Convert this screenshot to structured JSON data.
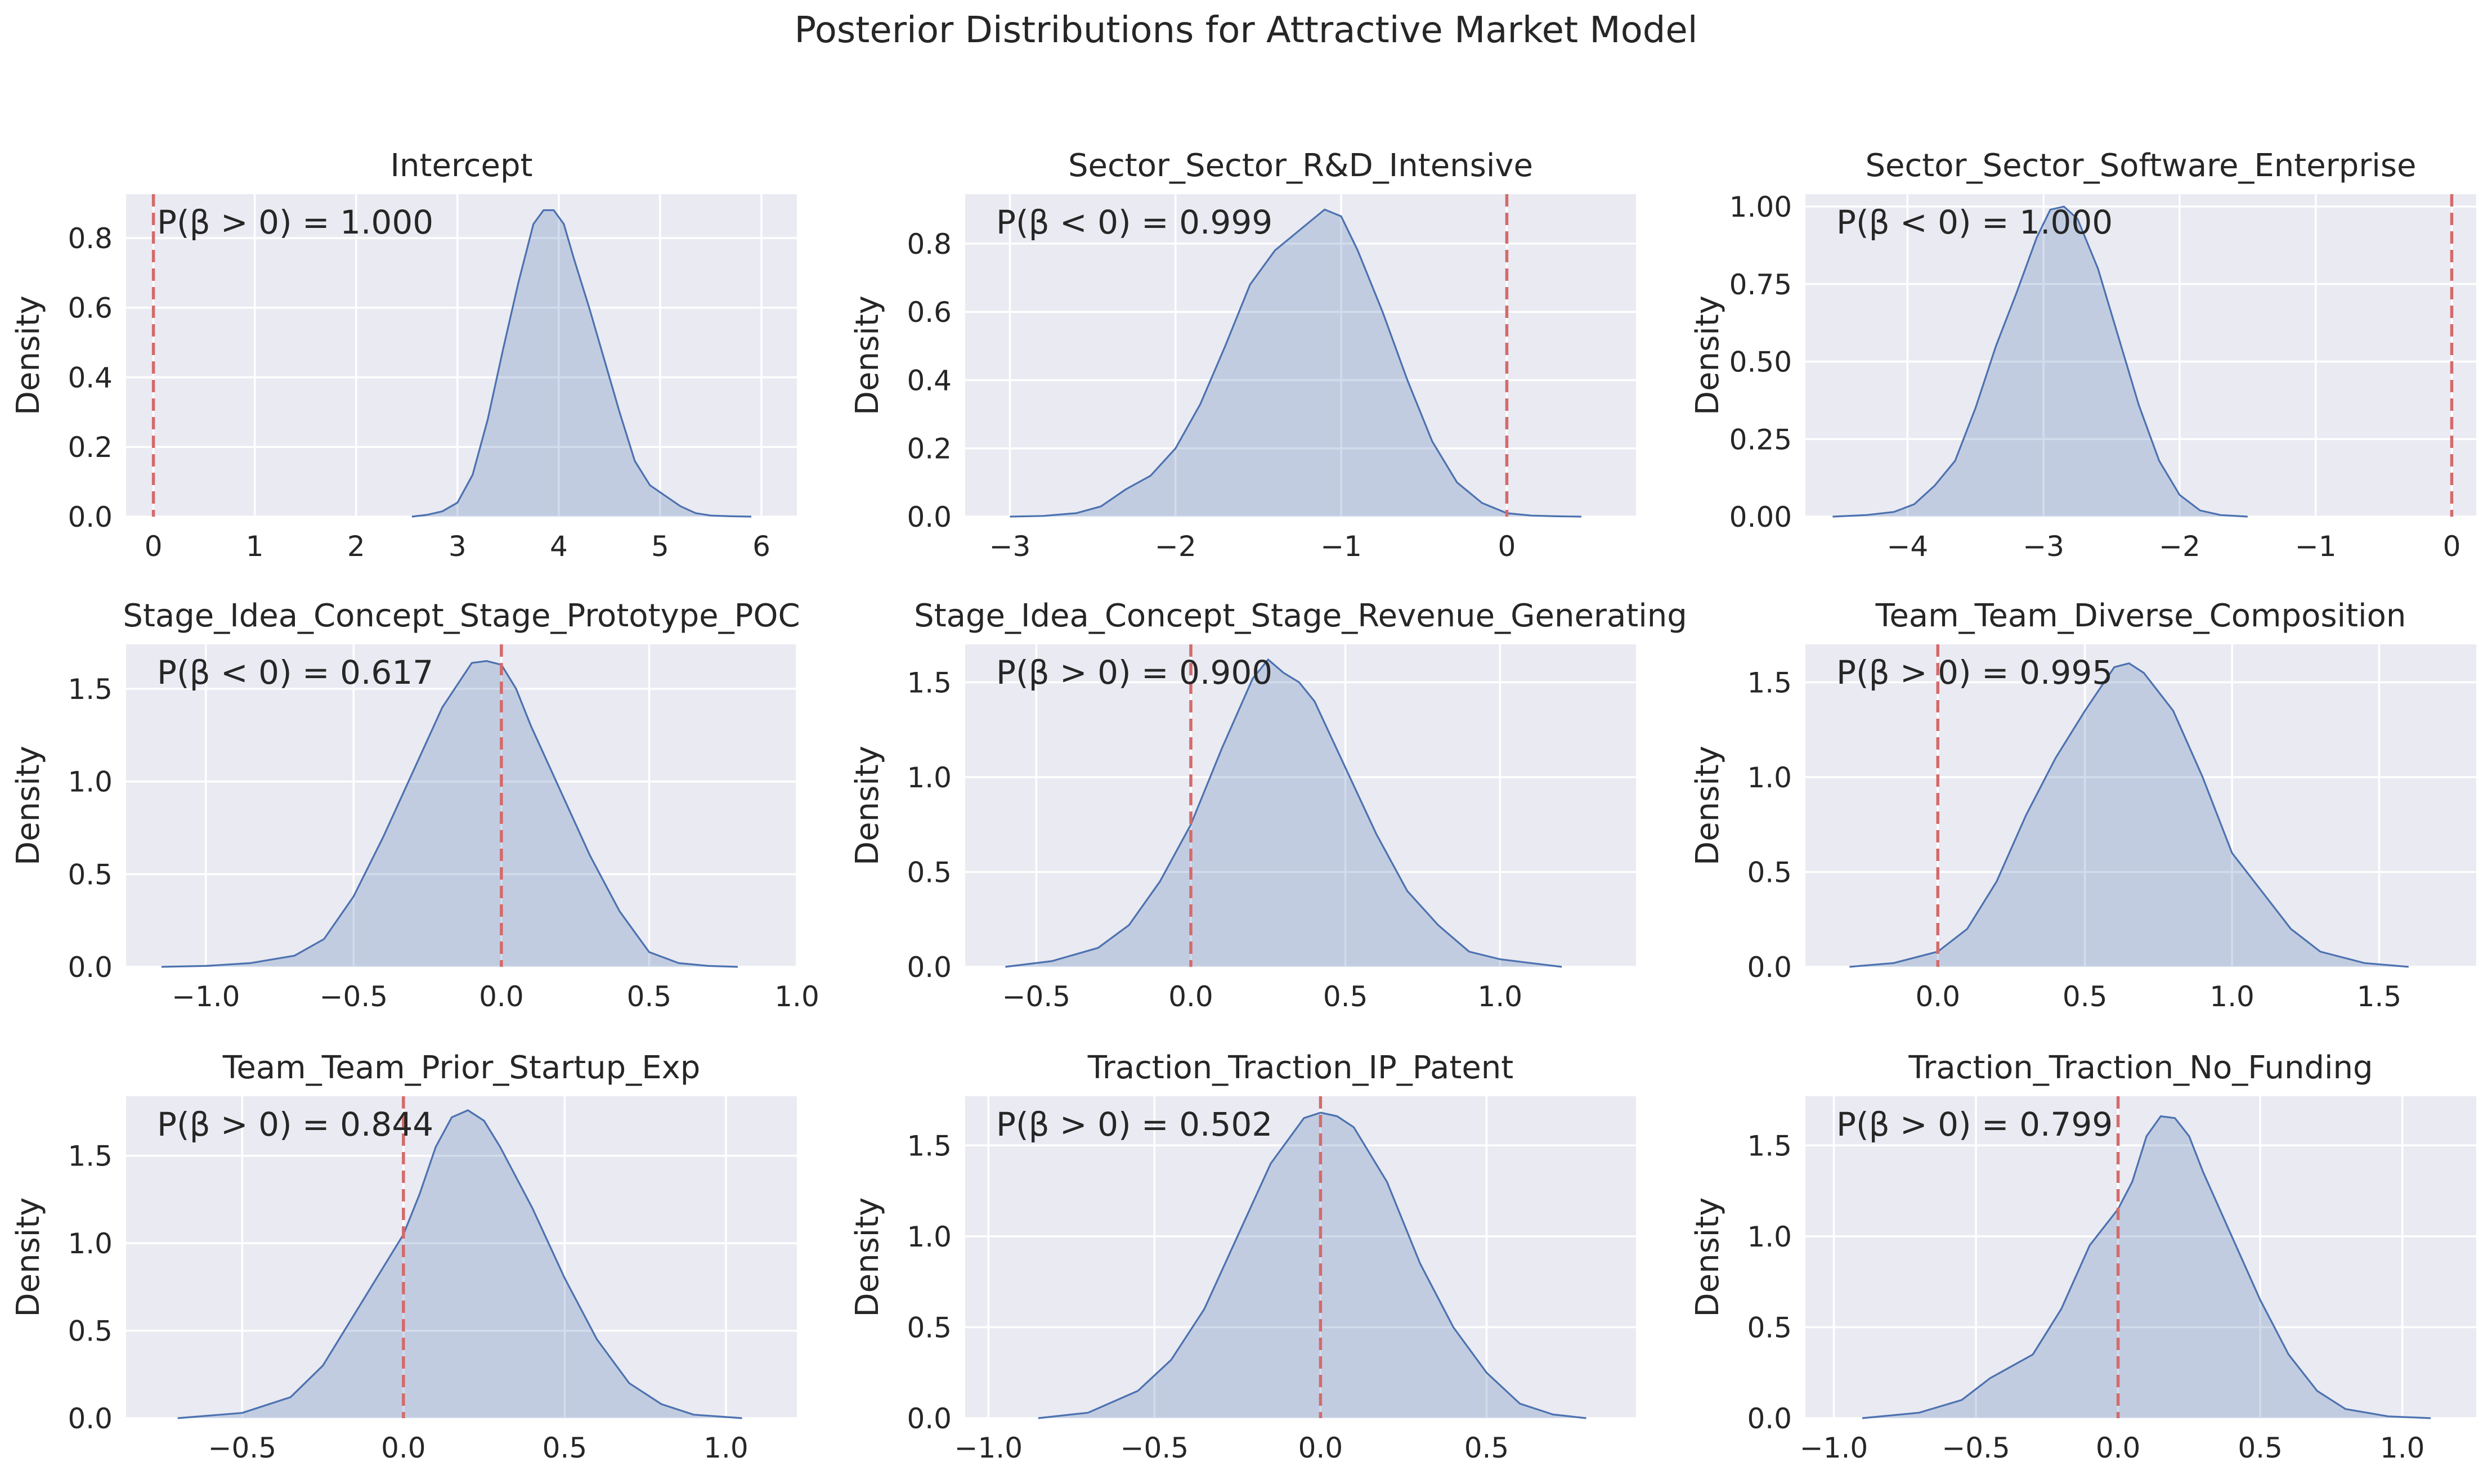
{
  "figure": {
    "title": "Posterior Distributions for Attractive Market Model"
  },
  "style": {
    "axes_bg": "#eaeaf2",
    "grid": "#ffffff",
    "line": "#4c72b0",
    "fill": "#4c72b0",
    "ref_line": "#d46a6a",
    "text": "#262626"
  },
  "chart_data": [
    {
      "type": "area",
      "title": "Intercept",
      "ylabel": "Density",
      "xlim": [
        -0.27,
        6.35
      ],
      "ylim": [
        0,
        0.926
      ],
      "xticks": [
        0,
        1,
        2,
        3,
        4,
        5,
        6
      ],
      "xtick_labels": [
        "0",
        "1",
        "2",
        "3",
        "4",
        "5",
        "6"
      ],
      "yticks": [
        0,
        0.2,
        0.4,
        0.6,
        0.8
      ],
      "ytick_labels": [
        "0.0",
        "0.2",
        "0.4",
        "0.6",
        "0.8"
      ],
      "ref_x": 0,
      "annotation": "P(β > 0) = 1.000",
      "x": [
        2.55,
        2.7,
        2.85,
        3.0,
        3.15,
        3.3,
        3.45,
        3.6,
        3.75,
        3.85,
        3.95,
        4.05,
        4.15,
        4.3,
        4.45,
        4.6,
        4.75,
        4.9,
        5.05,
        5.2,
        5.35,
        5.5,
        5.7,
        5.9
      ],
      "density": [
        0.0,
        0.005,
        0.015,
        0.04,
        0.12,
        0.28,
        0.48,
        0.67,
        0.84,
        0.88,
        0.88,
        0.84,
        0.74,
        0.6,
        0.45,
        0.3,
        0.16,
        0.09,
        0.06,
        0.03,
        0.01,
        0.003,
        0.001,
        0.0
      ]
    },
    {
      "type": "area",
      "title": "Sector_Sector_R&D_Intensive",
      "ylabel": "Density",
      "xlim": [
        -3.27,
        0.78
      ],
      "ylim": [
        0,
        0.945
      ],
      "xticks": [
        -3,
        -2,
        -1,
        0
      ],
      "xtick_labels": [
        "−3",
        "−2",
        "−1",
        "0"
      ],
      "yticks": [
        0,
        0.2,
        0.4,
        0.6,
        0.8
      ],
      "ytick_labels": [
        "0.0",
        "0.2",
        "0.4",
        "0.6",
        "0.8"
      ],
      "ref_x": 0,
      "annotation": "P(β < 0) = 0.999",
      "x": [
        -3.0,
        -2.8,
        -2.6,
        -2.45,
        -2.3,
        -2.15,
        -2.0,
        -1.85,
        -1.7,
        -1.55,
        -1.4,
        -1.25,
        -1.1,
        -1.0,
        -0.9,
        -0.75,
        -0.6,
        -0.45,
        -0.3,
        -0.15,
        0.0,
        0.15,
        0.3,
        0.45
      ],
      "density": [
        0.0,
        0.002,
        0.01,
        0.03,
        0.08,
        0.12,
        0.2,
        0.33,
        0.5,
        0.68,
        0.78,
        0.84,
        0.9,
        0.88,
        0.78,
        0.6,
        0.4,
        0.22,
        0.1,
        0.04,
        0.01,
        0.003,
        0.001,
        0.0
      ]
    },
    {
      "type": "area",
      "title": "Sector_Sector_Software_Enterprise",
      "ylabel": "Density",
      "xlim": [
        -4.75,
        0.18
      ],
      "ylim": [
        0,
        1.04
      ],
      "xticks": [
        -4,
        -3,
        -2,
        -1,
        0
      ],
      "xtick_labels": [
        "−4",
        "−3",
        "−2",
        "−1",
        "0"
      ],
      "yticks": [
        0,
        0.25,
        0.5,
        0.75,
        1.0
      ],
      "ytick_labels": [
        "0.00",
        "0.25",
        "0.50",
        "0.75",
        "1.00"
      ],
      "ref_x": 0,
      "annotation": "P(β < 0) = 1.000",
      "x": [
        -4.55,
        -4.3,
        -4.1,
        -3.95,
        -3.8,
        -3.65,
        -3.5,
        -3.35,
        -3.2,
        -3.05,
        -2.95,
        -2.85,
        -2.75,
        -2.6,
        -2.45,
        -2.3,
        -2.15,
        -2.0,
        -1.85,
        -1.7,
        -1.5
      ],
      "density": [
        0.0,
        0.005,
        0.015,
        0.04,
        0.1,
        0.18,
        0.35,
        0.55,
        0.72,
        0.9,
        0.99,
        1.0,
        0.96,
        0.8,
        0.58,
        0.36,
        0.18,
        0.07,
        0.02,
        0.005,
        0.0
      ]
    },
    {
      "type": "area",
      "title": "Stage_Idea_Concept_Stage_Prototype_POC",
      "ylabel": "Density",
      "xlim": [
        -1.27,
        1.0
      ],
      "ylim": [
        0,
        1.74
      ],
      "xticks": [
        -1.0,
        -0.5,
        0.0,
        0.5,
        1.0
      ],
      "xtick_labels": [
        "−1.0",
        "−0.5",
        "0.0",
        "0.5",
        "1.0"
      ],
      "yticks": [
        0,
        0.5,
        1.0,
        1.5
      ],
      "ytick_labels": [
        "0.0",
        "0.5",
        "1.0",
        "1.5"
      ],
      "ref_x": 0,
      "annotation": "P(β < 0) = 0.617",
      "x": [
        -1.15,
        -1.0,
        -0.85,
        -0.7,
        -0.6,
        -0.5,
        -0.4,
        -0.3,
        -0.2,
        -0.1,
        -0.05,
        0.0,
        0.05,
        0.1,
        0.2,
        0.3,
        0.4,
        0.5,
        0.6,
        0.7,
        0.8
      ],
      "density": [
        0.0,
        0.005,
        0.02,
        0.06,
        0.15,
        0.38,
        0.7,
        1.05,
        1.4,
        1.64,
        1.65,
        1.63,
        1.5,
        1.3,
        0.95,
        0.6,
        0.3,
        0.08,
        0.02,
        0.005,
        0.0
      ]
    },
    {
      "type": "area",
      "title": "Stage_Idea_Concept_Stage_Revenue_Generating",
      "ylabel": "Density",
      "xlim": [
        -0.73,
        1.44
      ],
      "ylim": [
        0,
        1.7
      ],
      "xticks": [
        -0.5,
        0.0,
        0.5,
        1.0
      ],
      "xtick_labels": [
        "−0.5",
        "0.0",
        "0.5",
        "1.0"
      ],
      "yticks": [
        0,
        0.5,
        1.0,
        1.5
      ],
      "ytick_labels": [
        "0.0",
        "0.5",
        "1.0",
        "1.5"
      ],
      "ref_x": 0,
      "annotation": "P(β > 0) = 0.900",
      "x": [
        -0.6,
        -0.45,
        -0.3,
        -0.2,
        -0.1,
        0.0,
        0.1,
        0.2,
        0.25,
        0.3,
        0.35,
        0.4,
        0.5,
        0.6,
        0.7,
        0.8,
        0.9,
        1.0,
        1.1,
        1.2
      ],
      "density": [
        0.0,
        0.03,
        0.1,
        0.22,
        0.45,
        0.75,
        1.15,
        1.52,
        1.62,
        1.55,
        1.5,
        1.4,
        1.05,
        0.7,
        0.4,
        0.22,
        0.08,
        0.04,
        0.02,
        0.0
      ]
    },
    {
      "type": "area",
      "title": "Team_Team_Diverse_Composition",
      "ylabel": "Density",
      "xlim": [
        -0.45,
        1.83
      ],
      "ylim": [
        0,
        1.7
      ],
      "xticks": [
        0.0,
        0.5,
        1.0,
        1.5
      ],
      "xtick_labels": [
        "0.0",
        "0.5",
        "1.0",
        "1.5"
      ],
      "yticks": [
        0,
        0.5,
        1.0,
        1.5
      ],
      "ytick_labels": [
        "0.0",
        "0.5",
        "1.0",
        "1.5"
      ],
      "ref_x": 0,
      "annotation": "P(β > 0) = 0.995",
      "x": [
        -0.3,
        -0.15,
        0.0,
        0.1,
        0.2,
        0.3,
        0.4,
        0.5,
        0.6,
        0.65,
        0.7,
        0.8,
        0.9,
        1.0,
        1.1,
        1.2,
        1.3,
        1.45,
        1.6
      ],
      "density": [
        0.0,
        0.02,
        0.08,
        0.2,
        0.45,
        0.8,
        1.1,
        1.35,
        1.58,
        1.6,
        1.55,
        1.35,
        1.0,
        0.6,
        0.4,
        0.2,
        0.08,
        0.02,
        0.0
      ]
    },
    {
      "type": "area",
      "title": "Team_Team_Prior_Startup_Exp",
      "ylabel": "Density",
      "xlim": [
        -0.86,
        1.22
      ],
      "ylim": [
        0,
        1.84
      ],
      "xticks": [
        -0.5,
        0.0,
        0.5,
        1.0
      ],
      "xtick_labels": [
        "−0.5",
        "0.0",
        "0.5",
        "1.0"
      ],
      "yticks": [
        0,
        0.5,
        1.0,
        1.5
      ],
      "ytick_labels": [
        "0.0",
        "0.5",
        "1.0",
        "1.5"
      ],
      "ref_x": 0,
      "annotation": "P(β > 0) = 0.844",
      "x": [
        -0.7,
        -0.5,
        -0.35,
        -0.25,
        -0.15,
        -0.05,
        0.0,
        0.05,
        0.1,
        0.15,
        0.2,
        0.25,
        0.3,
        0.4,
        0.5,
        0.6,
        0.7,
        0.8,
        0.9,
        1.05
      ],
      "density": [
        0.0,
        0.03,
        0.12,
        0.3,
        0.6,
        0.9,
        1.05,
        1.28,
        1.55,
        1.72,
        1.76,
        1.7,
        1.55,
        1.2,
        0.8,
        0.45,
        0.2,
        0.08,
        0.02,
        0.0
      ]
    },
    {
      "type": "area",
      "title": "Traction_Traction_IP_Patent",
      "ylabel": "Density",
      "xlim": [
        -1.07,
        0.95
      ],
      "ylim": [
        0,
        1.77
      ],
      "xticks": [
        -1.0,
        -0.5,
        0.0,
        0.5
      ],
      "xtick_labels": [
        "−1.0",
        "−0.5",
        "0.0",
        "0.5"
      ],
      "yticks": [
        0,
        0.5,
        1.0,
        1.5
      ],
      "ytick_labels": [
        "0.0",
        "0.5",
        "1.0",
        "1.5"
      ],
      "ref_x": 0,
      "annotation": "P(β > 0) = 0.502",
      "x": [
        -0.85,
        -0.7,
        -0.55,
        -0.45,
        -0.35,
        -0.25,
        -0.15,
        -0.05,
        0.0,
        0.05,
        0.1,
        0.2,
        0.3,
        0.4,
        0.5,
        0.6,
        0.7,
        0.8
      ],
      "density": [
        0.0,
        0.03,
        0.15,
        0.32,
        0.6,
        1.0,
        1.4,
        1.65,
        1.68,
        1.66,
        1.6,
        1.3,
        0.85,
        0.5,
        0.25,
        0.08,
        0.02,
        0.0
      ]
    },
    {
      "type": "area",
      "title": "Traction_Traction_No_Funding",
      "ylabel": "Density",
      "xlim": [
        -1.1,
        1.26
      ],
      "ylim": [
        0,
        1.77
      ],
      "xticks": [
        -1.0,
        -0.5,
        0.0,
        0.5,
        1.0
      ],
      "xtick_labels": [
        "−1.0",
        "−0.5",
        "0.0",
        "0.5",
        "1.0"
      ],
      "yticks": [
        0,
        0.5,
        1.0,
        1.5
      ],
      "ytick_labels": [
        "0.0",
        "0.5",
        "1.0",
        "1.5"
      ],
      "ref_x": 0,
      "annotation": "P(β > 0) = 0.799",
      "x": [
        -0.9,
        -0.7,
        -0.55,
        -0.45,
        -0.3,
        -0.2,
        -0.1,
        0.0,
        0.05,
        0.1,
        0.15,
        0.2,
        0.25,
        0.3,
        0.4,
        0.5,
        0.6,
        0.7,
        0.8,
        0.95,
        1.1
      ],
      "density": [
        0.0,
        0.03,
        0.1,
        0.22,
        0.35,
        0.6,
        0.95,
        1.15,
        1.3,
        1.55,
        1.66,
        1.65,
        1.55,
        1.35,
        1.0,
        0.65,
        0.35,
        0.15,
        0.05,
        0.01,
        0.0
      ]
    }
  ]
}
